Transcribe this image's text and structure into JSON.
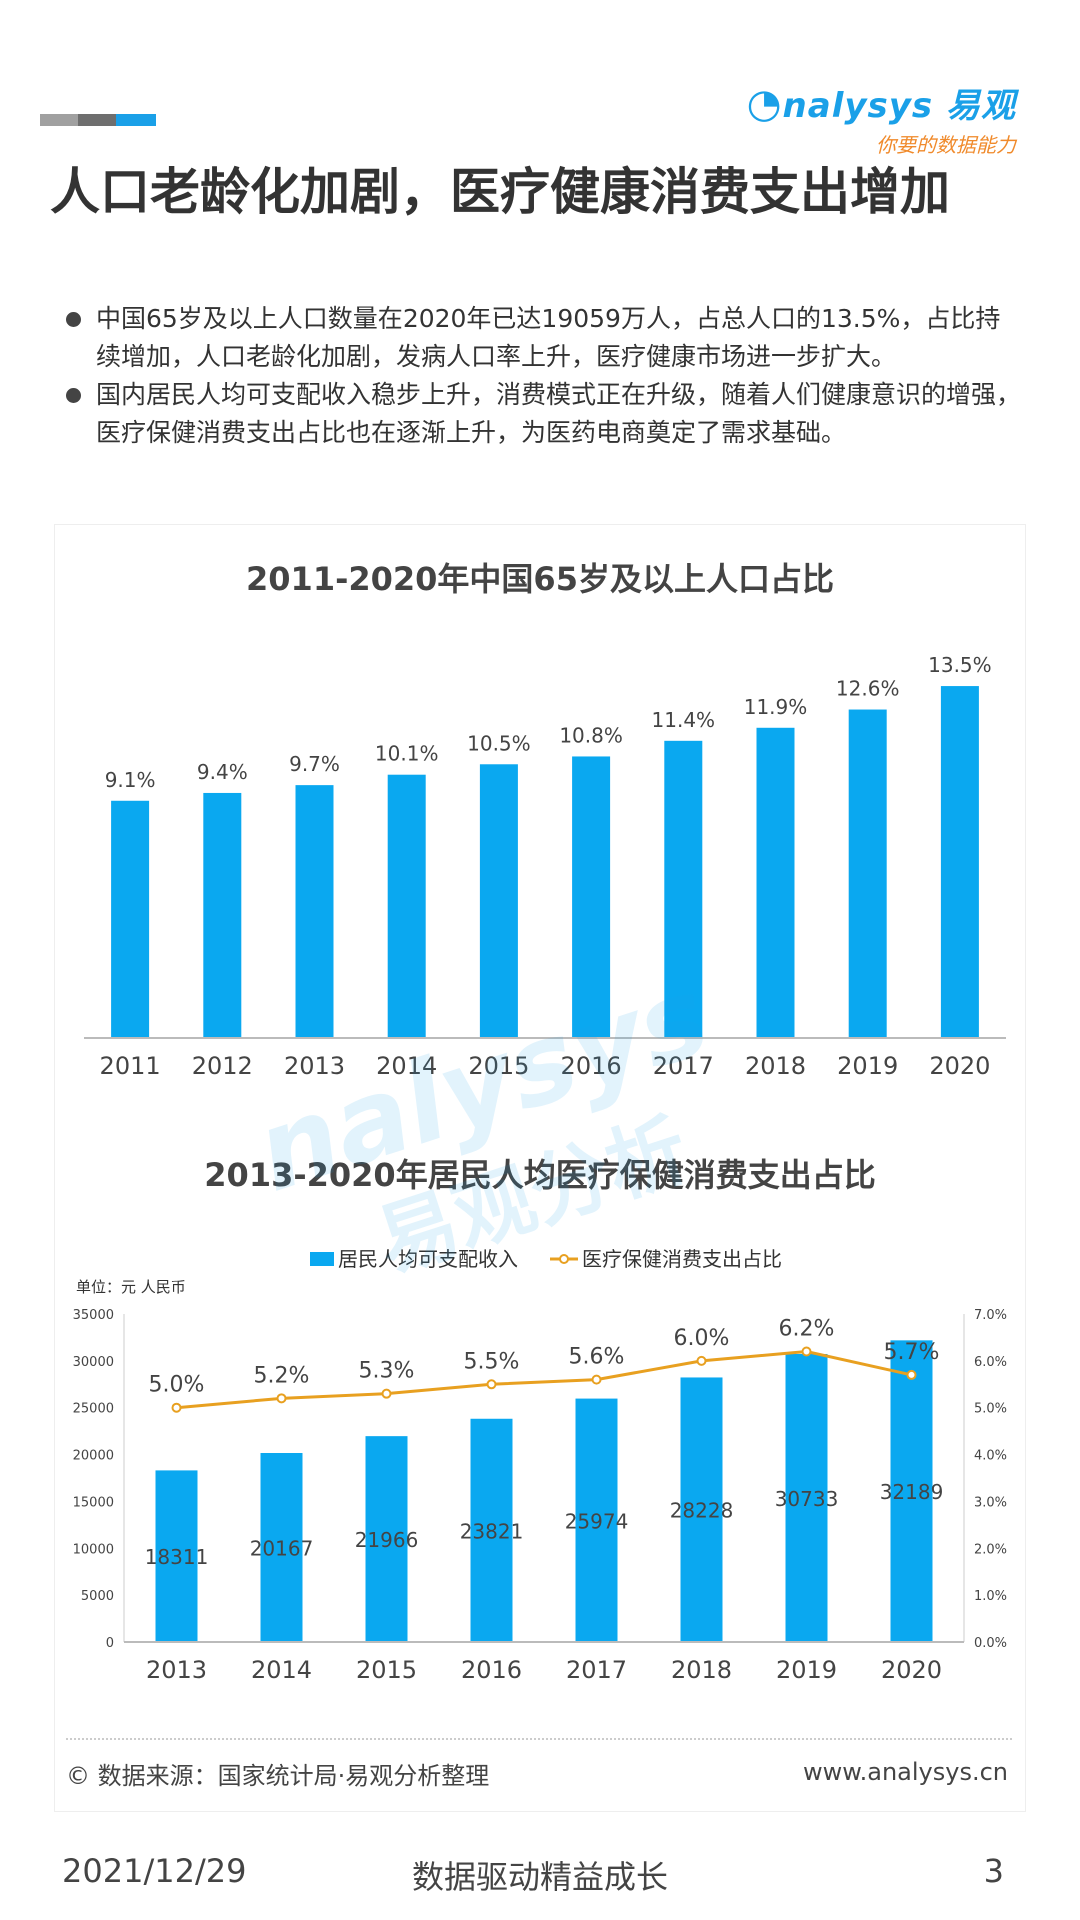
{
  "brand": {
    "logo_text": "nalysys 易观",
    "logo_tagline": "你要的数据能力",
    "accent_colors": [
      "#9a9a9a",
      "#6e6e6e",
      "#1aa0e8"
    ]
  },
  "page_title": "人口老龄化加剧，医疗健康消费支出增加",
  "bullets": [
    "中国65岁及以上人口数量在2020年已达19059万人，占总人口的13.5%，占比持续增加，人口老龄化加剧，发病人口率上升，医疗健康市场进一步扩大。",
    "国内居民人均可支配收入稳步上升，消费模式正在升级，随着人们健康意识的增强，医疗保健消费支出占比也在逐渐上升，为医药电商奠定了需求基础。"
  ],
  "watermark": {
    "line1": "nalysys",
    "line2": "易观分析"
  },
  "chart_data": [
    {
      "type": "bar",
      "title": "2011-2020年中国65岁及以上人口占比",
      "categories": [
        "2011",
        "2012",
        "2013",
        "2014",
        "2015",
        "2016",
        "2017",
        "2018",
        "2019",
        "2020"
      ],
      "values": [
        9.1,
        9.4,
        9.7,
        10.1,
        10.5,
        10.8,
        11.4,
        11.9,
        12.6,
        13.5
      ],
      "value_labels": [
        "9.1%",
        "9.4%",
        "9.7%",
        "10.1%",
        "10.5%",
        "10.8%",
        "11.4%",
        "11.9%",
        "12.6%",
        "13.5%"
      ],
      "ylim": [
        0,
        14.5
      ],
      "color": "#0aa8f0",
      "grid": false
    },
    {
      "type": "bar",
      "title": "2013-2020年居民人均医疗保健消费支出占比",
      "unit_label": "单位：元 人民币",
      "categories": [
        "2013",
        "2014",
        "2015",
        "2016",
        "2017",
        "2018",
        "2019",
        "2020"
      ],
      "series": [
        {
          "name": "居民人均可支配收入",
          "type": "bar",
          "axis": "left",
          "color": "#0aa8f0",
          "values": [
            18311,
            20167,
            21966,
            23821,
            25974,
            28228,
            30733,
            32189
          ]
        },
        {
          "name": "医疗保健消费支出占比",
          "type": "line",
          "axis": "right",
          "color": "#e8a020",
          "values": [
            5.0,
            5.2,
            5.3,
            5.5,
            5.6,
            6.0,
            6.2,
            5.7
          ],
          "value_labels": [
            "5.0%",
            "5.2%",
            "5.3%",
            "5.5%",
            "5.6%",
            "6.0%",
            "6.2%",
            "5.7%"
          ]
        }
      ],
      "y_left": {
        "ylim": [
          0,
          35000
        ],
        "ticks": [
          "0",
          "5000",
          "10000",
          "15000",
          "20000",
          "25000",
          "30000",
          "35000"
        ]
      },
      "y_right": {
        "ylim": [
          0,
          7
        ],
        "ticks": [
          "0.0%",
          "1.0%",
          "2.0%",
          "3.0%",
          "4.0%",
          "5.0%",
          "6.0%",
          "7.0%"
        ]
      },
      "legend_position": "top-center",
      "grid": false
    }
  ],
  "source": {
    "text": "© 数据来源：国家统计局·易观分析整理",
    "url": "www.analysys.cn"
  },
  "footer": {
    "date": "2021/12/29",
    "slogan": "数据驱动精益成长",
    "page": "3"
  }
}
